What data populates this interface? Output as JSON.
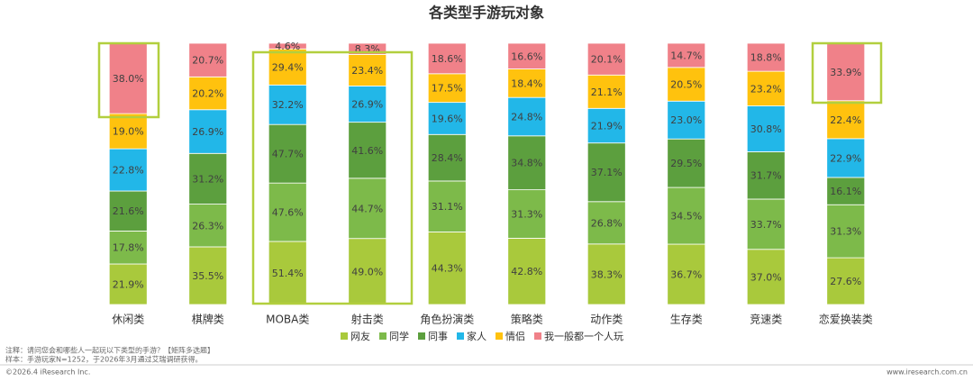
{
  "chart_data": {
    "type": "stacked_bar_percent",
    "title": "各类型手游玩对象",
    "categories": [
      "休闲类",
      "棋牌类",
      "MOBA类",
      "射击类",
      "角色扮演类",
      "策略类",
      "动作类",
      "生存类",
      "竞速类",
      "恋爱换装类"
    ],
    "series": [
      {
        "name": "网友",
        "color": "#a9c93c",
        "values": [
          21.9,
          35.5,
          51.4,
          49.0,
          44.3,
          42.8,
          38.3,
          36.7,
          37.0,
          27.6
        ],
        "value_labels": [
          "21.9%",
          "35.5%",
          "51.4%",
          "49.0%",
          "44.3%",
          "42.8%",
          "38.3%",
          "36.7%",
          "37.0%",
          "27.6%"
        ]
      },
      {
        "name": "同学",
        "color": "#7dba4a",
        "values": [
          17.8,
          26.3,
          47.6,
          44.7,
          31.1,
          31.3,
          26.8,
          34.5,
          33.7,
          31.3
        ],
        "value_labels": [
          "17.8%",
          "26.3%",
          "47.6%",
          "44.7%",
          "31.1%",
          "31.3%",
          "26.8%",
          "34.5%",
          "33.7%",
          "31.3%"
        ]
      },
      {
        "name": "同事",
        "color": "#5c9f3e",
        "values": [
          21.6,
          31.2,
          47.7,
          41.6,
          28.4,
          34.8,
          37.1,
          29.5,
          31.7,
          16.1
        ],
        "value_labels": [
          "21.6%",
          "31.2%",
          "47.7%",
          "41.6%",
          "28.4%",
          "34.8%",
          "37.1%",
          "29.5%",
          "31.7%",
          "16.1%"
        ]
      },
      {
        "name": "家人",
        "color": "#22b7e8",
        "values": [
          22.8,
          26.9,
          32.2,
          26.9,
          19.6,
          24.8,
          21.9,
          23.0,
          30.8,
          22.9
        ],
        "value_labels": [
          "22.8%",
          "26.9%",
          "32.2%",
          "26.9%",
          "19.6%",
          "24.8%",
          "21.9%",
          "23.0%",
          "30.8%",
          "22.9%"
        ]
      },
      {
        "name": "情侣",
        "color": "#ffc20e",
        "values": [
          19.0,
          20.2,
          29.4,
          23.4,
          17.5,
          18.4,
          21.1,
          20.5,
          23.2,
          22.4
        ],
        "value_labels": [
          "19.0%",
          "20.2%",
          "29.4%",
          "23.4%",
          "17.5%",
          "18.4%",
          "21.1%",
          "20.5%",
          "23.2%",
          "22.4%"
        ]
      },
      {
        "name": "我一般都一个人玩",
        "color": "#f08189",
        "values": [
          38.0,
          20.7,
          4.6,
          8.3,
          18.6,
          16.6,
          20.1,
          14.7,
          18.8,
          33.9
        ],
        "value_labels": [
          "38.0%",
          "20.7%",
          "4.6%",
          "8.3%",
          "18.6%",
          "16.6%",
          "20.1%",
          "14.7%",
          "18.8%",
          "33.9%"
        ]
      }
    ],
    "notes": [
      "注释：请问您会和哪些人一起玩以下类型的手游？【矩阵多选题】",
      "样本：手游玩家N=1252，于2026年3月通过艾瑞调研获得。"
    ],
    "copyright": "©2026.4 iResearch Inc.",
    "website": "www.iresearch.com.cn"
  }
}
